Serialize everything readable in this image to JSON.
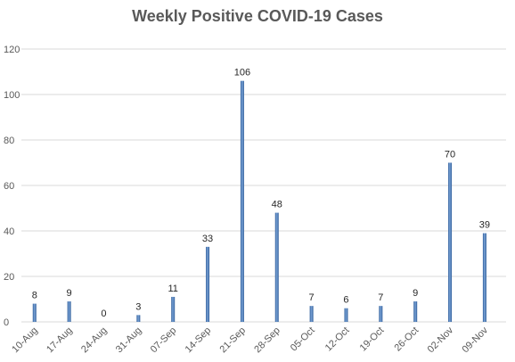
{
  "chart_data": {
    "type": "bar",
    "title": "Weekly Positive COVID-19 Cases",
    "xlabel": "",
    "ylabel": "",
    "categories": [
      "10-Aug",
      "17-Aug",
      "24-Aug",
      "31-Aug",
      "07-Sep",
      "14-Sep",
      "21-Sep",
      "28-Sep",
      "05-Oct",
      "12-Oct",
      "19-Oct",
      "26-Oct",
      "02-Nov",
      "09-Nov"
    ],
    "series": [
      {
        "values": [
          8,
          9,
          0,
          3,
          11,
          33,
          106,
          48,
          7,
          6,
          7,
          9,
          70,
          39
        ]
      }
    ],
    "ylim": [
      0,
      120
    ],
    "yticks": [
      0,
      20,
      40,
      60,
      80,
      100,
      120
    ],
    "grid": true,
    "legend": "none",
    "bar_color": "#2e5c99",
    "bar_highlight": "#7aa3d6"
  }
}
